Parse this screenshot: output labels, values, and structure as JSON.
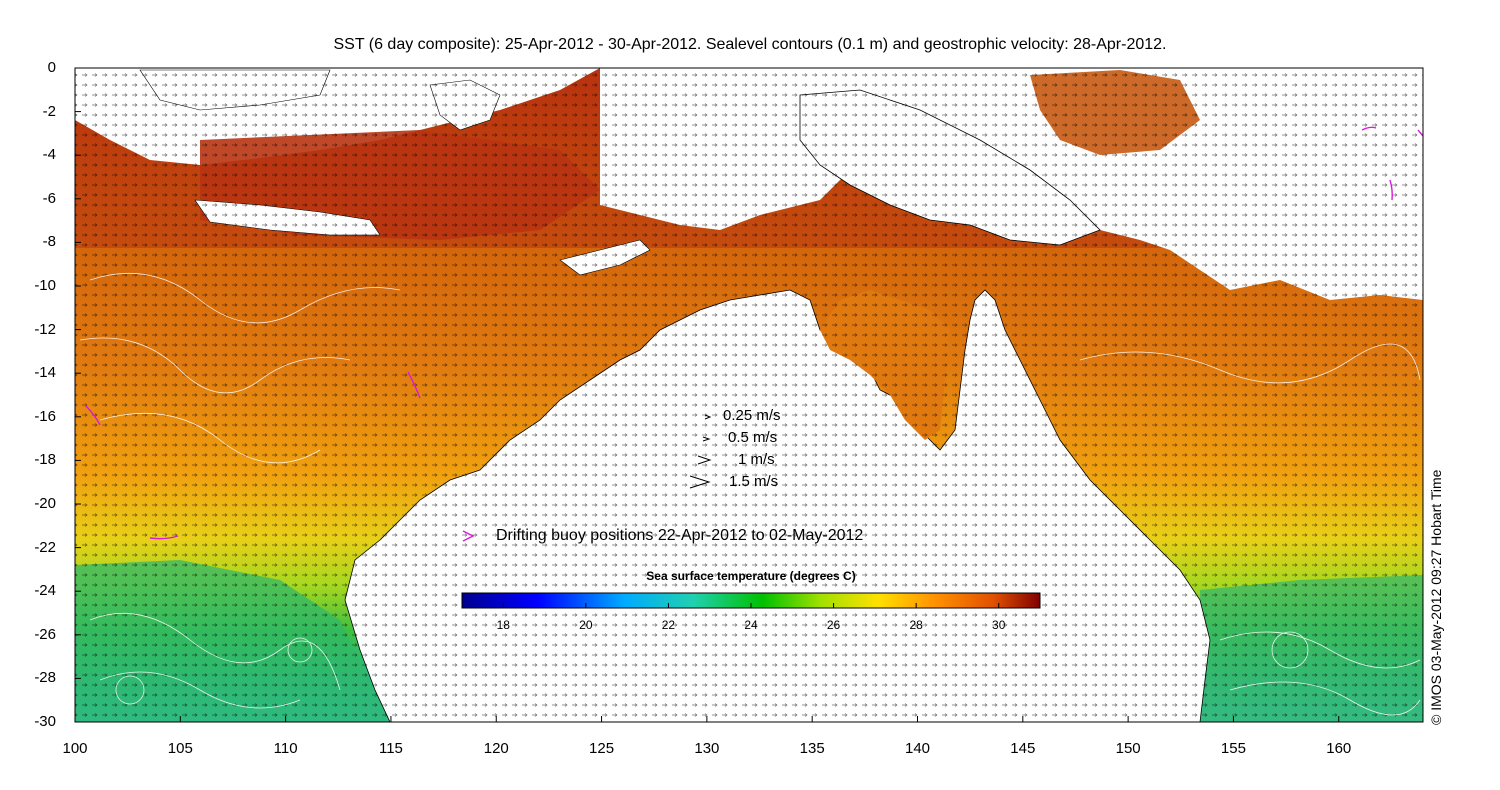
{
  "title": "SST (6 day composite): 25-Apr-2012 - 30-Apr-2012. Sealevel contours (0.1 m) and geostrophic velocity: 28-Apr-2012.",
  "copyright": "© IMOS 03-May-2012 09:27 Hobart Time",
  "velocity_legend": [
    {
      "label": "0.25 m/s",
      "speed": 0.25
    },
    {
      "label": "0.5 m/s",
      "speed": 0.5
    },
    {
      "label": "1 m/s",
      "speed": 1
    },
    {
      "label": "1.5 m/s",
      "speed": 1.5
    }
  ],
  "buoy_legend": {
    "label": "Drifting buoy positions 22-Apr-2012 to 02-May-2012",
    "color": "#d81bd8"
  },
  "colorbar": {
    "title": "Sea surface temperature (degrees C)",
    "range": [
      17,
      31
    ],
    "ticks": [
      "18",
      "20",
      "22",
      "24",
      "26",
      "28",
      "30"
    ],
    "tick_values": [
      18,
      20,
      22,
      24,
      26,
      28,
      30
    ],
    "colormap": "jet"
  },
  "axes": {
    "xlim": [
      100,
      164
    ],
    "ylim": [
      -30,
      0
    ],
    "xticks": [
      "100",
      "105",
      "110",
      "115",
      "120",
      "125",
      "130",
      "135",
      "140",
      "145",
      "150",
      "155",
      "160"
    ],
    "xtick_values": [
      100,
      105,
      110,
      115,
      120,
      125,
      130,
      135,
      140,
      145,
      150,
      155,
      160
    ],
    "yticks": [
      "0",
      "-2",
      "-4",
      "-6",
      "-8",
      "-10",
      "-12",
      "-14",
      "-16",
      "-18",
      "-20",
      "-22",
      "-24",
      "-26",
      "-28",
      "-30"
    ],
    "ytick_values": [
      0,
      -2,
      -4,
      -6,
      -8,
      -10,
      -12,
      -14,
      -16,
      -18,
      -20,
      -22,
      -24,
      -26,
      -28,
      -30
    ]
  },
  "map": {
    "region": "Australia and surrounding seas",
    "land_color": "#ffffff",
    "contour_color": "#ffffff",
    "vector_color": "#000000"
  }
}
